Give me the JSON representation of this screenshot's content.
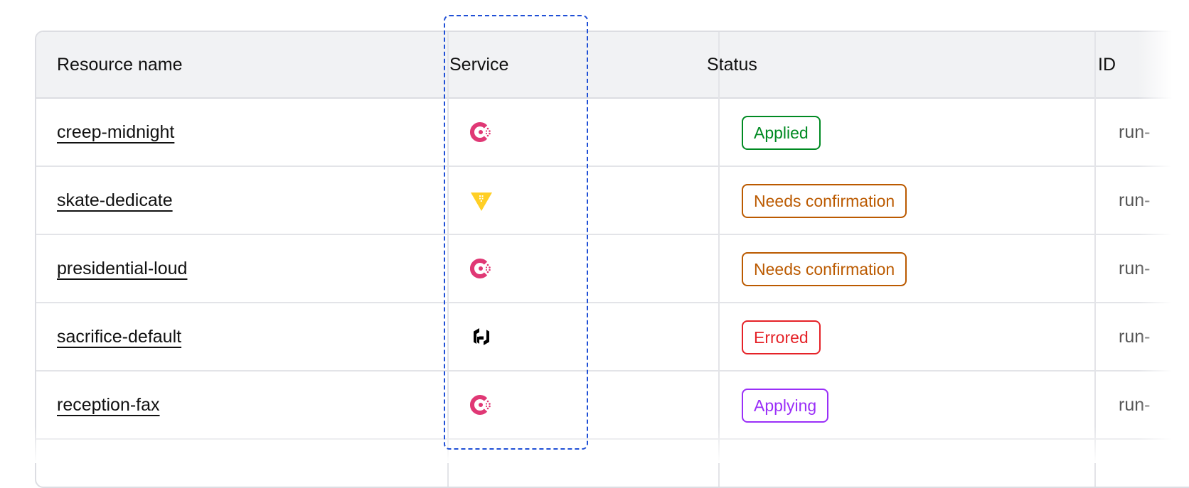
{
  "columns": [
    "Resource name",
    "Service",
    "Status",
    "ID"
  ],
  "rows": [
    {
      "name": "creep-midnight",
      "service": "consul-icon",
      "status": "Applied",
      "status_color": "#008a22",
      "id": "run-"
    },
    {
      "name": "skate-dedicate",
      "service": "vault-icon",
      "status": "Needs confirmation",
      "status_color": "#bb5a00",
      "id": "run-"
    },
    {
      "name": "presidential-loud",
      "service": "consul-icon",
      "status": "Needs confirmation",
      "status_color": "#bb5a00",
      "id": "run-"
    },
    {
      "name": "sacrifice-default",
      "service": "hashicorp-icon",
      "status": "Errored",
      "status_color": "#e52228",
      "id": "run-"
    },
    {
      "name": "reception-fax",
      "service": "consul-icon",
      "status": "Applying",
      "status_color": "#9a2ff8",
      "id": "run-"
    }
  ],
  "colors": {
    "highlight": "#1f4fd6",
    "consul": "#e03875",
    "vault": "#ffcf25",
    "hashicorp": "#000000"
  }
}
